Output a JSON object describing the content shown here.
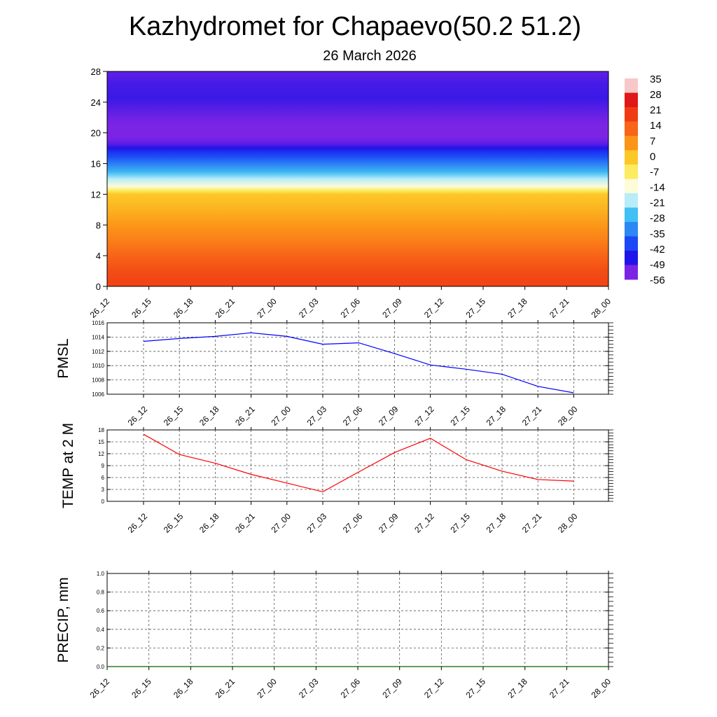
{
  "title": "Kazhydromet for Chapaevo(50.2 51.2)",
  "subtitle": "26 March 2026",
  "time_labels": [
    "26_12",
    "26_15",
    "26_18",
    "26_21",
    "27_00",
    "27_03",
    "27_06",
    "27_09",
    "27_12",
    "27_15",
    "27_18",
    "27_21",
    "28_00"
  ],
  "chart_data": [
    {
      "id": "cross-section",
      "type": "heatmap",
      "xlabel": "",
      "ylabel": "",
      "x": [
        "26_12",
        "26_15",
        "26_18",
        "26_21",
        "27_00",
        "27_03",
        "27_06",
        "27_09",
        "27_12",
        "27_15",
        "27_18",
        "27_21",
        "28_00"
      ],
      "yticks": [
        0,
        4,
        8,
        12,
        16,
        20,
        24,
        28
      ],
      "ylim": [
        0,
        28
      ],
      "colorbar_labels": [
        "35",
        "28",
        "21",
        "14",
        "7",
        "0",
        "-7",
        "-14",
        "-21",
        "-28",
        "-35",
        "-42",
        "-49",
        "-56"
      ],
      "colorbar_colors": [
        "#f8c8c8",
        "#e01818",
        "#f03c14",
        "#f86418",
        "#fc9418",
        "#fcc828",
        "#fcec60",
        "#fcfcd8",
        "#b8ecf8",
        "#40c0f4",
        "#2c88f4",
        "#1c48f8",
        "#2014e8",
        "#7c24e4"
      ],
      "temperature_profile": [
        {
          "height": 0,
          "temp": 20
        },
        {
          "height": 2,
          "temp": 18
        },
        {
          "height": 6,
          "temp": 10
        },
        {
          "height": 10,
          "temp": 3
        },
        {
          "height": 12,
          "temp": 0
        },
        {
          "height": 13,
          "temp": -14
        },
        {
          "height": 14,
          "temp": -21
        },
        {
          "height": 15,
          "temp": -30
        },
        {
          "height": 16,
          "temp": -36
        },
        {
          "height": 17.5,
          "temp": -45
        },
        {
          "height": 18.5,
          "temp": -53
        },
        {
          "height": 19.5,
          "temp": -57
        },
        {
          "height": 22,
          "temp": -55
        },
        {
          "height": 24.5,
          "temp": -51
        },
        {
          "height": 26.5,
          "temp": -52
        },
        {
          "height": 28,
          "temp": -54
        }
      ],
      "legend": "right"
    },
    {
      "id": "pmsl",
      "type": "line",
      "xlabel": "",
      "ylabel": "PMSL",
      "x": [
        "26_12",
        "26_15",
        "26_18",
        "26_21",
        "27_00",
        "27_03",
        "27_06",
        "27_09",
        "27_12",
        "27_15",
        "27_18",
        "27_21",
        "28_00"
      ],
      "series": [
        {
          "values": [
            1013.4,
            1013.8,
            1014.1,
            1014.6,
            1014.1,
            1013.0,
            1013.2,
            1011.7,
            1010.1,
            1009.5,
            1008.8,
            1007.1,
            1006.2
          ],
          "color": "#0000ff"
        }
      ],
      "yticks": [
        1006,
        1008,
        1010,
        1012,
        1014,
        1016
      ],
      "ylim": [
        1006,
        1016
      ],
      "grid": true
    },
    {
      "id": "temp",
      "type": "line",
      "xlabel": "",
      "ylabel": "TEMP at 2 M",
      "x": [
        "26_12",
        "26_15",
        "26_18",
        "26_21",
        "27_00",
        "27_03",
        "27_06",
        "27_09",
        "27_12",
        "27_15",
        "27_18",
        "27_21",
        "28_00"
      ],
      "series": [
        {
          "values": [
            16.9,
            11.8,
            9.6,
            6.8,
            4.6,
            2.4,
            7.4,
            12.3,
            15.9,
            10.5,
            7.6,
            5.5,
            5.1
          ],
          "color": "#ff0000"
        }
      ],
      "yticks": [
        0,
        3,
        6,
        9,
        12,
        15,
        18
      ],
      "ylim": [
        0,
        18
      ],
      "grid": true
    },
    {
      "id": "precip",
      "type": "line",
      "xlabel": "",
      "ylabel": "PRECIP, mm",
      "x": [
        "26_12",
        "26_15",
        "26_18",
        "26_21",
        "27_00",
        "27_03",
        "27_06",
        "27_09",
        "27_12",
        "27_15",
        "27_18",
        "27_21",
        "28_00"
      ],
      "series": [
        {
          "values": [
            0,
            0,
            0,
            0,
            0,
            0,
            0,
            0,
            0,
            0,
            0,
            0,
            0
          ],
          "color": "#006400"
        }
      ],
      "yticks": [
        "0.0",
        "0.2",
        "0.4",
        "0.6",
        "0.8",
        "1.0"
      ],
      "ylim": [
        0,
        1
      ],
      "grid": true
    }
  ]
}
